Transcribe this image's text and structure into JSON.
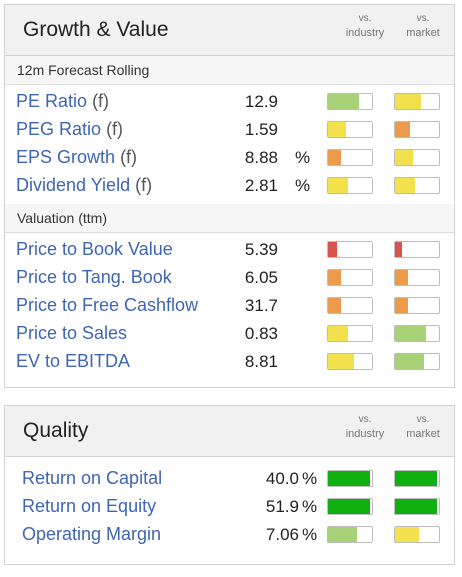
{
  "colors": {
    "red": "#d9534f",
    "orange": "#ec9a4b",
    "yellow": "#f3e04d",
    "lightgreen": "#a8d277",
    "green": "#10b010",
    "link": "#3e66b4"
  },
  "headers": {
    "vs": "vs.",
    "industry": "industry",
    "market": "market"
  },
  "growth_value": {
    "title": "Growth & Value",
    "sections": [
      {
        "title": "12m Forecast Rolling",
        "rows": [
          {
            "label": "PE Ratio",
            "suffix": "(f)",
            "value": "12.9",
            "unit": "",
            "industry": {
              "level": 0.7,
              "color": "lightgreen"
            },
            "market": {
              "level": 0.6,
              "color": "yellow"
            }
          },
          {
            "label": "PEG Ratio",
            "suffix": "(f)",
            "value": "1.59",
            "unit": "",
            "industry": {
              "level": 0.4,
              "color": "yellow"
            },
            "market": {
              "level": 0.35,
              "color": "orange"
            }
          },
          {
            "label": "EPS Growth",
            "suffix": "(f)",
            "value": "8.88",
            "unit": "%",
            "industry": {
              "level": 0.3,
              "color": "orange"
            },
            "market": {
              "level": 0.4,
              "color": "yellow"
            }
          },
          {
            "label": "Dividend Yield",
            "suffix": "(f)",
            "value": "2.81",
            "unit": "%",
            "industry": {
              "level": 0.45,
              "color": "yellow"
            },
            "market": {
              "level": 0.45,
              "color": "yellow"
            }
          }
        ]
      },
      {
        "title": "Valuation (ttm)",
        "rows": [
          {
            "label": "Price to Book Value",
            "suffix": "",
            "value": "5.39",
            "unit": "",
            "industry": {
              "level": 0.2,
              "color": "red"
            },
            "market": {
              "level": 0.15,
              "color": "red"
            }
          },
          {
            "label": "Price to Tang. Book",
            "suffix": "",
            "value": "6.05",
            "unit": "",
            "industry": {
              "level": 0.3,
              "color": "orange"
            },
            "market": {
              "level": 0.3,
              "color": "orange"
            }
          },
          {
            "label": "Price to Free Cashflow",
            "suffix": "",
            "value": "31.7",
            "unit": "",
            "industry": {
              "level": 0.3,
              "color": "orange"
            },
            "market": {
              "level": 0.3,
              "color": "orange"
            }
          },
          {
            "label": "Price to Sales",
            "suffix": "",
            "value": "0.83",
            "unit": "",
            "industry": {
              "level": 0.45,
              "color": "yellow"
            },
            "market": {
              "level": 0.7,
              "color": "lightgreen"
            }
          },
          {
            "label": "EV to EBITDA",
            "suffix": "",
            "value": "8.81",
            "unit": "",
            "industry": {
              "level": 0.6,
              "color": "yellow"
            },
            "market": {
              "level": 0.65,
              "color": "lightgreen"
            }
          }
        ]
      }
    ]
  },
  "quality": {
    "title": "Quality",
    "rows": [
      {
        "label": "Return on Capital",
        "value": "40.0",
        "unit": "%",
        "industry": {
          "level": 0.95,
          "color": "green"
        },
        "market": {
          "level": 0.95,
          "color": "green"
        }
      },
      {
        "label": "Return on Equity",
        "value": "51.9",
        "unit": "%",
        "industry": {
          "level": 0.95,
          "color": "green"
        },
        "market": {
          "level": 0.95,
          "color": "green"
        }
      },
      {
        "label": "Operating Margin",
        "value": "7.06",
        "unit": "%",
        "industry": {
          "level": 0.65,
          "color": "lightgreen"
        },
        "market": {
          "level": 0.55,
          "color": "yellow"
        }
      }
    ]
  }
}
